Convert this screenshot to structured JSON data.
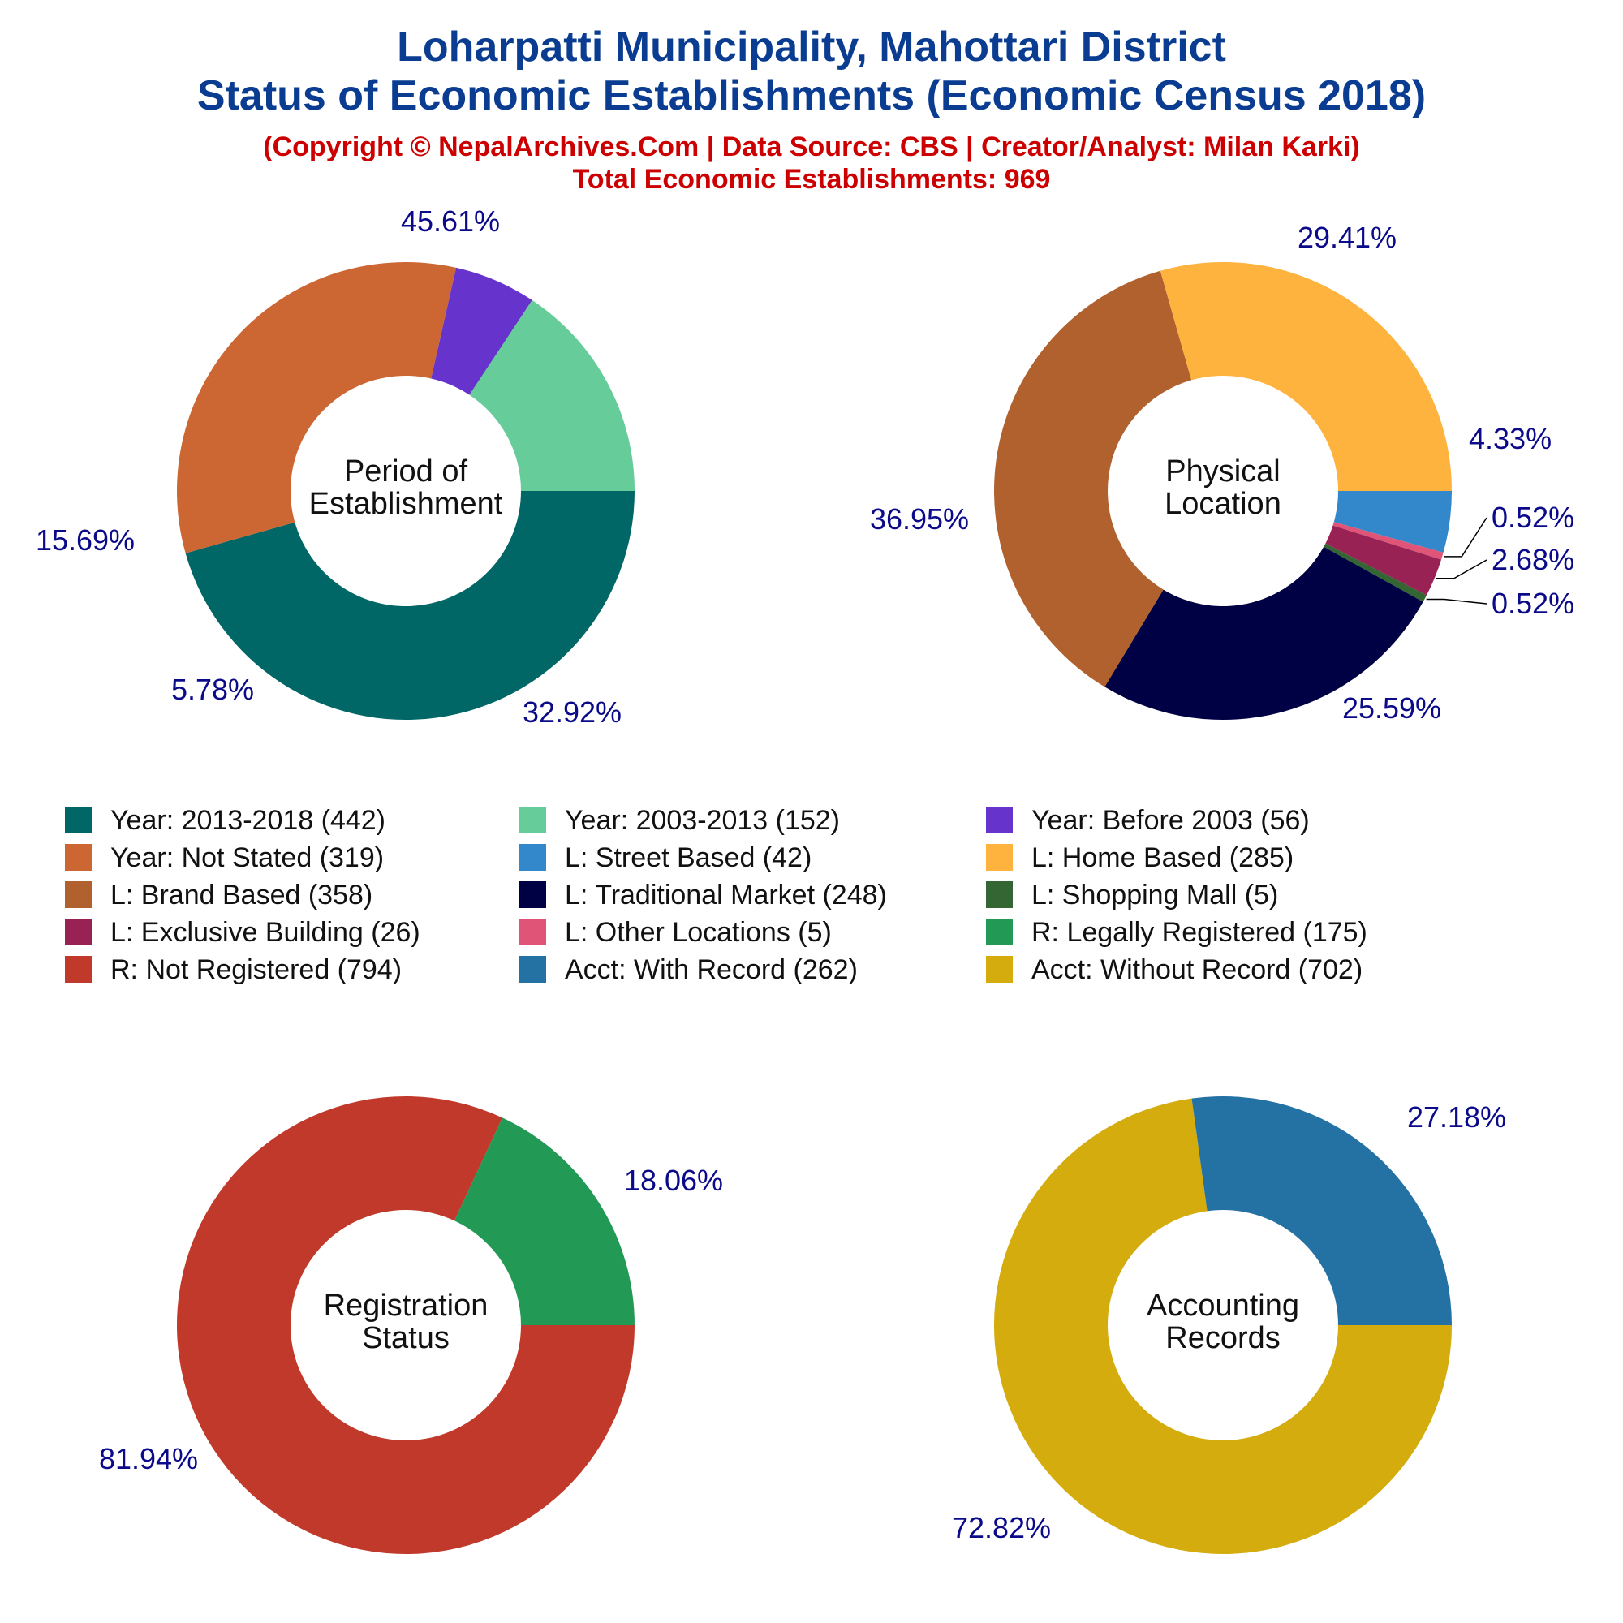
{
  "header": {
    "title_line1": "Loharpatti Municipality, Mahottari District",
    "title_line2": "Status of Economic Establishments (Economic Census 2018)",
    "copyright": "(Copyright © NepalArchives.Com | Data Source: CBS | Creator/Analyst: Milan Karki)",
    "total": "Total Economic Establishments: 969"
  },
  "colors": {
    "title": "#0a3d91",
    "subtitle": "#cc0000",
    "pct_label": "#0b0b8a"
  },
  "legend": [
    {
      "label": "Year: 2013-2018 (442)",
      "color": "#006666"
    },
    {
      "label": "Year: 2003-2013 (152)",
      "color": "#66cc99"
    },
    {
      "label": "Year: Before 2003 (56)",
      "color": "#6633cc"
    },
    {
      "label": "Year: Not Stated (319)",
      "color": "#cc6633"
    },
    {
      "label": "L: Street Based (42)",
      "color": "#3388cc"
    },
    {
      "label": "L: Home Based (285)",
      "color": "#ffb33f"
    },
    {
      "label": "L: Brand Based (358)",
      "color": "#b0612e"
    },
    {
      "label": "L: Traditional Market (248)",
      "color": "#000044"
    },
    {
      "label": "L: Shopping Mall (5)",
      "color": "#336633"
    },
    {
      "label": "L: Exclusive Building (26)",
      "color": "#992255"
    },
    {
      "label": "L: Other Locations (5)",
      "color": "#e05577"
    },
    {
      "label": "R: Legally Registered (175)",
      "color": "#229955"
    },
    {
      "label": "R: Not Registered (794)",
      "color": "#c0392b"
    },
    {
      "label": "Acct: With Record (262)",
      "color": "#2471a3"
    },
    {
      "label": "Acct: Without Record (702)",
      "color": "#d4ac0d"
    }
  ],
  "chart_data": [
    {
      "type": "pie",
      "center_label": [
        "Period of",
        "Establishment"
      ],
      "slices": [
        {
          "name": "Year: 2013-2018",
          "value": 442,
          "pct": "45.61%",
          "color": "#006666"
        },
        {
          "name": "Year: Not Stated",
          "value": 319,
          "pct": "32.92%",
          "color": "#cc6633"
        },
        {
          "name": "Year: Before 2003",
          "value": 56,
          "pct": "5.78%",
          "color": "#6633cc"
        },
        {
          "name": "Year: 2003-2013",
          "value": 152,
          "pct": "15.69%",
          "color": "#66cc99"
        }
      ]
    },
    {
      "type": "pie",
      "center_label": [
        "Physical",
        "Location"
      ],
      "slices": [
        {
          "name": "L: Street Based",
          "value": 42,
          "pct": "4.33%",
          "color": "#3388cc"
        },
        {
          "name": "L: Other Locations",
          "value": 5,
          "pct": "0.52%",
          "color": "#e05577"
        },
        {
          "name": "L: Exclusive Building",
          "value": 26,
          "pct": "2.68%",
          "color": "#992255"
        },
        {
          "name": "L: Shopping Mall",
          "value": 5,
          "pct": "0.52%",
          "color": "#336633"
        },
        {
          "name": "L: Traditional Market",
          "value": 248,
          "pct": "25.59%",
          "color": "#000044"
        },
        {
          "name": "L: Brand Based",
          "value": 358,
          "pct": "36.95%",
          "color": "#b0612e"
        },
        {
          "name": "L: Home Based",
          "value": 285,
          "pct": "29.41%",
          "color": "#ffb33f"
        }
      ]
    },
    {
      "type": "pie",
      "center_label": [
        "Registration",
        "Status"
      ],
      "slices": [
        {
          "name": "R: Not Registered",
          "value": 794,
          "pct": "81.94%",
          "color": "#c0392b"
        },
        {
          "name": "R: Legally Registered",
          "value": 175,
          "pct": "18.06%",
          "color": "#229955"
        }
      ]
    },
    {
      "type": "pie",
      "center_label": [
        "Accounting",
        "Records"
      ],
      "slices": [
        {
          "name": "Acct: Without Record",
          "value": 702,
          "pct": "72.82%",
          "color": "#d4ac0d"
        },
        {
          "name": "Acct: With Record",
          "value": 262,
          "pct": "27.18%",
          "color": "#2471a3"
        }
      ]
    }
  ]
}
